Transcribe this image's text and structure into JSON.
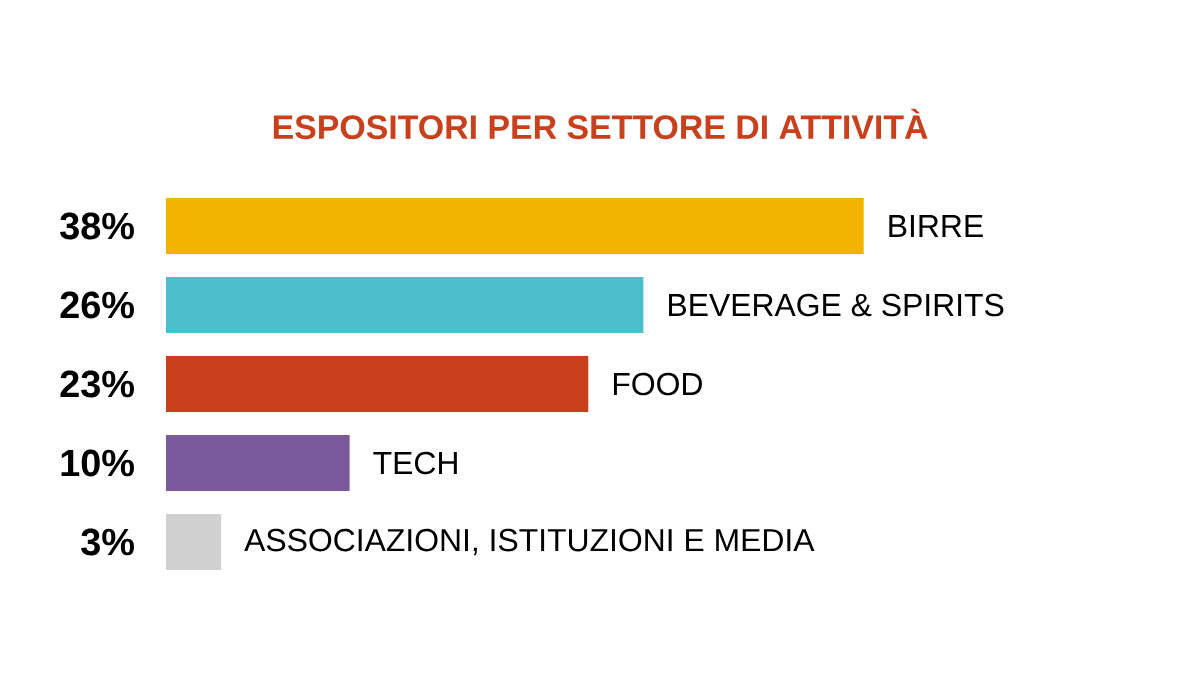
{
  "chart_data": {
    "type": "bar",
    "orientation": "horizontal",
    "title": "ESPOSITORI PER SETTORE DI ATTIVITÀ",
    "categories": [
      "BIRRE",
      "BEVERAGE & SPIRITS",
      "FOOD",
      "TECH",
      "ASSOCIAZIONI, ISTITUZIONI E MEDIA"
    ],
    "values": [
      38,
      26,
      23,
      10,
      3
    ],
    "value_labels": [
      "38%",
      "26%",
      "23%",
      "10%",
      "3%"
    ],
    "colors": [
      "#f0b400",
      "#4bbfcc",
      "#c8401c",
      "#7a5a9a",
      "#d0d0d0"
    ]
  }
}
